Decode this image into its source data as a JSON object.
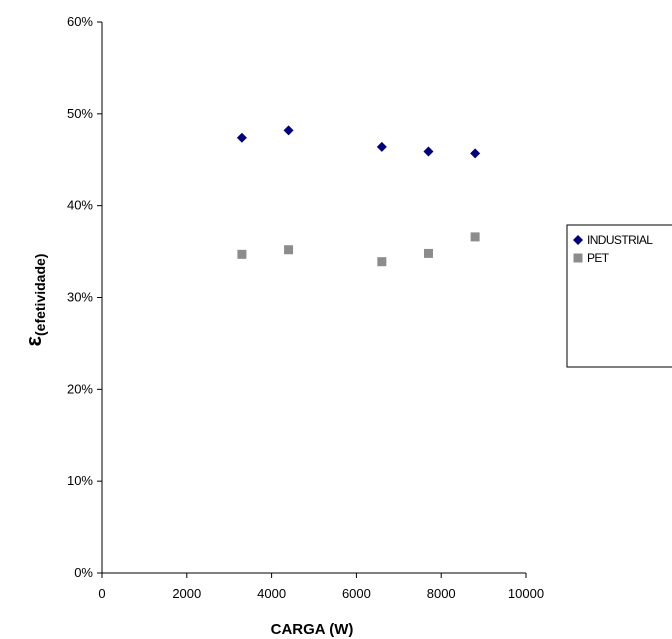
{
  "chart_data": {
    "type": "scatter",
    "xlabel": "CARGA (W)",
    "ylabel_symbol": "ε",
    "ylabel_subscript": "(efetividade)",
    "xlim": [
      0,
      10000
    ],
    "ylim": [
      0,
      0.6
    ],
    "x_ticks": [
      {
        "value": 0,
        "label": "0"
      },
      {
        "value": 2000,
        "label": "2000"
      },
      {
        "value": 4000,
        "label": "4000"
      },
      {
        "value": 6000,
        "label": "6000"
      },
      {
        "value": 8000,
        "label": "8000"
      },
      {
        "value": 10000,
        "label": "10000"
      }
    ],
    "y_ticks": [
      {
        "value": 0,
        "label": "0%"
      },
      {
        "value": 0.1,
        "label": "10%"
      },
      {
        "value": 0.2,
        "label": "20%"
      },
      {
        "value": 0.3,
        "label": "30%"
      },
      {
        "value": 0.4,
        "label": "40%"
      },
      {
        "value": 0.5,
        "label": "50%"
      },
      {
        "value": 0.6,
        "label": "60%"
      }
    ],
    "grid": false,
    "legend_position": "right",
    "series": [
      {
        "name": "INDUSTRIAL",
        "marker": "diamond",
        "color": "#000080",
        "x": [
          3300,
          4400,
          6600,
          7700,
          8800
        ],
        "y": [
          0.474,
          0.482,
          0.464,
          0.459,
          0.457
        ]
      },
      {
        "name": "PET",
        "marker": "square",
        "color": "#8c8c8c",
        "x": [
          3300,
          4400,
          6600,
          7700,
          8800
        ],
        "y": [
          0.347,
          0.352,
          0.339,
          0.348,
          0.366
        ]
      }
    ]
  }
}
